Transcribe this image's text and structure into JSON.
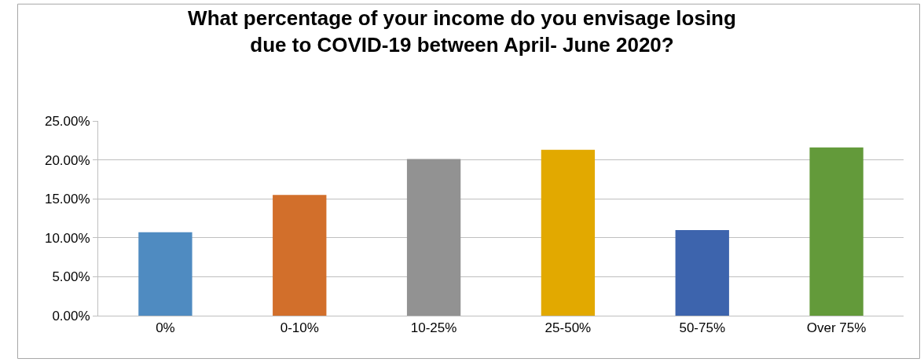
{
  "chart_data": {
    "type": "bar",
    "title": "What percentage of your income do you envisage losing\ndue to COVID-19 between April- June 2020?",
    "categories": [
      "0%",
      "0-10%",
      "10-25%",
      "25-50%",
      "50-75%",
      "Over 75%"
    ],
    "values": [
      10.7,
      15.5,
      20.1,
      21.3,
      11.0,
      21.6
    ],
    "colors": [
      "#4f8bc1",
      "#d26f2b",
      "#929292",
      "#e2a900",
      "#3d64ad",
      "#639a3a"
    ],
    "ylim": [
      0,
      25
    ],
    "yticks": [
      {
        "value": 0,
        "label": "0.00%"
      },
      {
        "value": 5,
        "label": "5.00%"
      },
      {
        "value": 10,
        "label": "10.00%"
      },
      {
        "value": 15,
        "label": "15.00%"
      },
      {
        "value": 20,
        "label": "20.00%"
      },
      {
        "value": 25,
        "label": "25.00%"
      }
    ],
    "grid": "y"
  }
}
